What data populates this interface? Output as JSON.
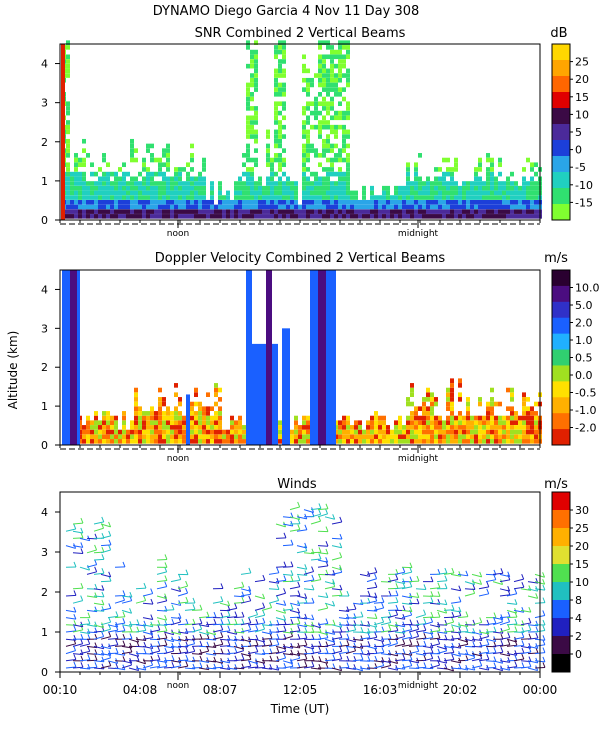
{
  "header": {
    "title_line1": "DYNAMO Diego Garcia    4 Nov 11 Day 308"
  },
  "panels": [
    {
      "id": "snr",
      "title": "SNR Combined 2 Vertical Beams",
      "unit": "dB",
      "yticks": [
        "0",
        "1",
        "2",
        "3",
        "4"
      ],
      "time_labels": [
        "noon",
        "midnight"
      ],
      "colorbar": {
        "labels": [
          "25",
          "20",
          "15",
          "10",
          "5",
          "0",
          "-5",
          "-10",
          "-15"
        ],
        "colors": [
          "#ffd700",
          "#ffa500",
          "#ff6600",
          "#e00000",
          "#3b0a45",
          "#4b2a9a",
          "#1c3fd9",
          "#2aa5e8",
          "#20d0c0",
          "#30e070",
          "#80ff30"
        ]
      }
    },
    {
      "id": "doppler",
      "title": "Doppler Velocity Combined 2 Vertical Beams",
      "unit": "m/s",
      "ylabel": "Altitude (km)",
      "yticks": [
        "0",
        "1",
        "2",
        "3",
        "4"
      ],
      "time_labels": [
        "noon",
        "midnight"
      ],
      "colorbar": {
        "labels": [
          "10.0",
          "5.0",
          "2.0",
          "1.0",
          "0.5",
          "0.0",
          "-0.5",
          "-1.0",
          "-2.0"
        ],
        "colors": [
          "#2a0030",
          "#4b0d80",
          "#3030c8",
          "#1a60ff",
          "#20b0ff",
          "#30d070",
          "#a0e020",
          "#ffe000",
          "#ffb000",
          "#ff7000",
          "#e02000"
        ]
      }
    },
    {
      "id": "winds",
      "title": "Winds",
      "unit": "m/s",
      "xlabel": "Time (UT)",
      "yticks": [
        "0",
        "1",
        "2",
        "3",
        "4"
      ],
      "time_labels": [
        "noon",
        "midnight"
      ],
      "xticks": [
        "00:10",
        "04:08",
        "08:07",
        "12:05",
        "16:03",
        "20:02",
        "00:00"
      ],
      "colorbar": {
        "labels": [
          "30",
          "25",
          "20",
          "15",
          "10",
          "8",
          "4",
          "2",
          "0"
        ],
        "colors": [
          "#e00000",
          "#ff7000",
          "#ffb000",
          "#e0e030",
          "#50e050",
          "#20c0c0",
          "#1a60ff",
          "#2020c0",
          "#3b0a45",
          "#000000"
        ]
      }
    }
  ],
  "chart_data": [
    {
      "type": "heatmap",
      "title": "SNR Combined 2 Vertical Beams",
      "x_range_ut": [
        "00:10",
        "00:00"
      ],
      "y_range_km": [
        0,
        4.5
      ],
      "value_unit": "dB",
      "color_scale": [
        -15,
        -10,
        -5,
        0,
        5,
        10,
        15,
        20,
        25
      ]
    },
    {
      "type": "heatmap",
      "title": "Doppler Velocity Combined 2 Vertical Beams",
      "x_range_ut": [
        "00:10",
        "00:00"
      ],
      "y_range_km": [
        0,
        4.5
      ],
      "ylabel": "Altitude (km)",
      "value_unit": "m/s",
      "color_scale": [
        -2.0,
        -1.0,
        -0.5,
        0.0,
        0.5,
        1.0,
        2.0,
        5.0,
        10.0
      ]
    },
    {
      "type": "scatter",
      "title": "Winds",
      "xlabel": "Time (UT)",
      "x_ticks": [
        "00:10",
        "04:08",
        "08:07",
        "12:05",
        "16:03",
        "20:02",
        "00:00"
      ],
      "y_range_km": [
        0,
        4.5
      ],
      "value_unit": "m/s",
      "color_scale": [
        0,
        2,
        4,
        8,
        10,
        15,
        20,
        25,
        30
      ]
    }
  ]
}
